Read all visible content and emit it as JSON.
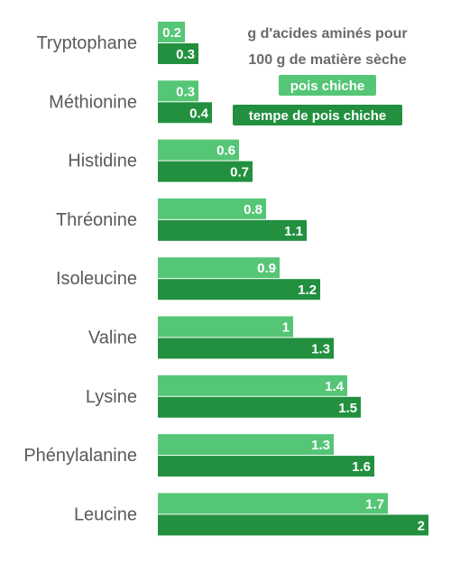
{
  "chart_data": {
    "type": "bar",
    "orientation": "horizontal",
    "categories": [
      "Tryptophane",
      "Méthionine",
      "Histidine",
      "Thréonine",
      "Isoleucine",
      "Valine",
      "Lysine",
      "Phénylalanine",
      "Leucine"
    ],
    "series": [
      {
        "name": "pois chiche",
        "color": "#55c676",
        "values": [
          0.2,
          0.3,
          0.6,
          0.8,
          0.9,
          1,
          1.4,
          1.3,
          1.7
        ]
      },
      {
        "name": "tempe de pois chiche",
        "color": "#22903f",
        "values": [
          0.3,
          0.4,
          0.7,
          1.1,
          1.2,
          1.3,
          1.5,
          1.6,
          2
        ]
      }
    ],
    "legend_title": [
      "g d'acides aminés pour",
      "100 g de matière sèche"
    ],
    "xlim": [
      0,
      2
    ],
    "grid": false,
    "legend_position": "top-right"
  }
}
